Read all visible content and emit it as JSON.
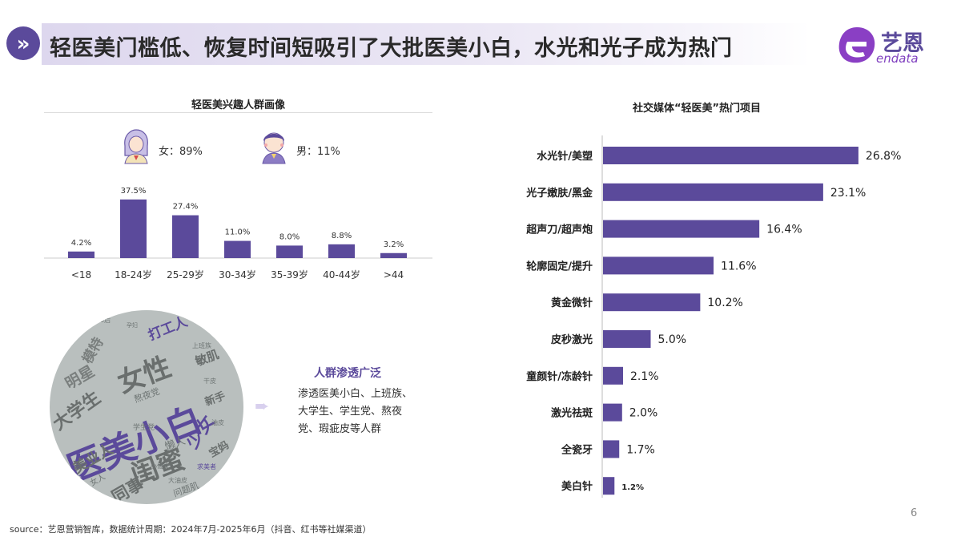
{
  "header": {
    "title": "轻医美门槛低、恢复时间短吸引了大批医美小白，水光和光子成为热门",
    "logo_cn": "艺恩",
    "logo_en": "endata",
    "chevron_glyph": "»"
  },
  "left_panel": {
    "title": "轻医美兴趣人群画像",
    "gender": {
      "female": "女：89%",
      "male": "男：11%"
    },
    "crowd": {
      "title": "人群渗透广泛",
      "description": "渗透医美小白、上班族、大学生、学生党、熬夜党、瑕疵皮等人群"
    },
    "word_cloud": [
      {
        "text": "医美小白"
      },
      {
        "text": "女性"
      },
      {
        "text": "闺蜜"
      },
      {
        "text": "大学生"
      },
      {
        "text": "美业人"
      },
      {
        "text": "同事"
      },
      {
        "text": "少女"
      },
      {
        "text": "明星"
      },
      {
        "text": "打工人"
      },
      {
        "text": "新手"
      },
      {
        "text": "模特"
      },
      {
        "text": "敏肌"
      },
      {
        "text": "熬夜党"
      },
      {
        "text": "懒人"
      },
      {
        "text": "宝妈"
      },
      {
        "text": "学生党"
      },
      {
        "text": "女人"
      },
      {
        "text": "问题肌"
      },
      {
        "text": "求美者"
      },
      {
        "text": "大油皮"
      },
      {
        "text": "90后"
      },
      {
        "text": "孕妇"
      },
      {
        "text": "干皮"
      },
      {
        "text": "油皮"
      },
      {
        "text": "上班族"
      },
      {
        "text": "小仙女"
      }
    ],
    "colors": {
      "bar": "#5b4a9b"
    }
  },
  "right_panel": {
    "title": "社交媒体“轻医美”热门项目"
  },
  "chart_data": [
    {
      "type": "bar",
      "title": "轻医美兴趣人群画像",
      "categories": [
        "<18",
        "18-24岁",
        "25-29岁",
        "30-34岁",
        "35-39岁",
        "40-44岁",
        ">44"
      ],
      "values": [
        4.2,
        37.5,
        27.4,
        11.0,
        8.0,
        8.8,
        3.2
      ],
      "value_labels": [
        "4.2%",
        "37.5%",
        "27.4%",
        "11.0%",
        "8.0%",
        "8.8%",
        "3.2%"
      ],
      "orientation": "vertical",
      "ylim": [
        0,
        40
      ],
      "grid": false,
      "color": "#5b4a9b"
    },
    {
      "type": "bar",
      "title": "社交媒体“轻医美”热门项目",
      "categories": [
        "水光针/美塑",
        "光子嫩肤/黑金",
        "超声刀/超声炮",
        "轮廓固定/提升",
        "黄金微针",
        "皮秒激光",
        "童颜针/冻龄针",
        "激光祛斑",
        "全瓷牙",
        "美白针"
      ],
      "values": [
        26.8,
        23.1,
        16.4,
        11.6,
        10.2,
        5.0,
        2.1,
        2.0,
        1.7,
        1.2
      ],
      "value_labels": [
        "26.8%",
        "23.1%",
        "16.4%",
        "11.6%",
        "10.2%",
        "5.0%",
        "2.1%",
        "2.0%",
        "1.7%",
        "1.2%"
      ],
      "orientation": "horizontal",
      "xlim": [
        0,
        30
      ],
      "grid": false,
      "color": "#5b4a9b"
    }
  ],
  "footer": {
    "source": "source：艺恩营销智库，数据统计周期：2024年7月-2025年6月（抖音、红书等社媒渠道）",
    "page_number": "6"
  }
}
